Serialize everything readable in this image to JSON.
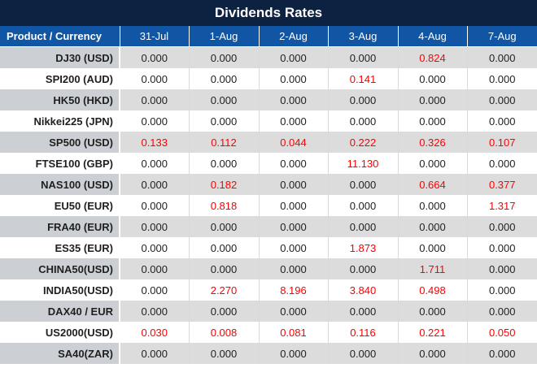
{
  "chart_data": {
    "type": "table",
    "title": "Dividends Rates",
    "product_column_label": "Product / Currency",
    "date_columns": [
      "31-Jul",
      "1-Aug",
      "2-Aug",
      "3-Aug",
      "4-Aug",
      "7-Aug"
    ],
    "rows": [
      {
        "product": "DJ30 (USD)",
        "values": [
          "0.000",
          "0.000",
          "0.000",
          "0.000",
          "0.824",
          "0.000"
        ],
        "red": [
          0,
          0,
          0,
          0,
          1,
          0
        ]
      },
      {
        "product": "SPI200 (AUD)",
        "values": [
          "0.000",
          "0.000",
          "0.000",
          "0.141",
          "0.000",
          "0.000"
        ],
        "red": [
          0,
          0,
          0,
          1,
          0,
          0
        ]
      },
      {
        "product": "HK50 (HKD)",
        "values": [
          "0.000",
          "0.000",
          "0.000",
          "0.000",
          "0.000",
          "0.000"
        ],
        "red": [
          0,
          0,
          0,
          0,
          0,
          0
        ]
      },
      {
        "product": "Nikkei225 (JPN)",
        "values": [
          "0.000",
          "0.000",
          "0.000",
          "0.000",
          "0.000",
          "0.000"
        ],
        "red": [
          0,
          0,
          0,
          0,
          0,
          0
        ]
      },
      {
        "product": "SP500 (USD)",
        "values": [
          "0.133",
          "0.112",
          "0.044",
          "0.222",
          "0.326",
          "0.107"
        ],
        "red": [
          1,
          1,
          1,
          1,
          1,
          1
        ]
      },
      {
        "product": "FTSE100 (GBP)",
        "values": [
          "0.000",
          "0.000",
          "0.000",
          "11.130",
          "0.000",
          "0.000"
        ],
        "red": [
          0,
          0,
          0,
          1,
          0,
          0
        ]
      },
      {
        "product": "NAS100 (USD)",
        "values": [
          "0.000",
          "0.182",
          "0.000",
          "0.000",
          "0.664",
          "0.377"
        ],
        "red": [
          0,
          1,
          0,
          0,
          1,
          1
        ]
      },
      {
        "product": "EU50 (EUR)",
        "values": [
          "0.000",
          "0.818",
          "0.000",
          "0.000",
          "0.000",
          "1.317"
        ],
        "red": [
          0,
          1,
          0,
          0,
          0,
          1
        ]
      },
      {
        "product": "FRA40 (EUR)",
        "values": [
          "0.000",
          "0.000",
          "0.000",
          "0.000",
          "0.000",
          "0.000"
        ],
        "red": [
          0,
          0,
          0,
          0,
          0,
          0
        ]
      },
      {
        "product": "ES35 (EUR)",
        "values": [
          "0.000",
          "0.000",
          "0.000",
          "1.873",
          "0.000",
          "0.000"
        ],
        "red": [
          0,
          0,
          0,
          1,
          0,
          0
        ]
      },
      {
        "product": "CHINA50(USD)",
        "values": [
          "0.000",
          "0.000",
          "0.000",
          "0.000",
          "1.711",
          "0.000"
        ],
        "red": [
          0,
          0,
          0,
          0,
          1,
          0
        ]
      },
      {
        "product": "INDIA50(USD)",
        "values": [
          "0.000",
          "2.270",
          "8.196",
          "3.840",
          "0.498",
          "0.000"
        ],
        "red": [
          0,
          1,
          1,
          1,
          1,
          0
        ]
      },
      {
        "product": "DAX40 / EUR",
        "values": [
          "0.000",
          "0.000",
          "0.000",
          "0.000",
          "0.000",
          "0.000"
        ],
        "red": [
          0,
          0,
          0,
          0,
          0,
          0
        ]
      },
      {
        "product": "US2000(USD)",
        "values": [
          "0.030",
          "0.008",
          "0.081",
          "0.116",
          "0.221",
          "0.050"
        ],
        "red": [
          1,
          1,
          1,
          1,
          1,
          1
        ]
      },
      {
        "product": "SA40(ZAR)",
        "values": [
          "0.000",
          "0.000",
          "0.000",
          "0.000",
          "0.000",
          "0.000"
        ],
        "red": [
          0,
          0,
          0,
          0,
          0,
          0
        ]
      }
    ],
    "colors": {
      "title_bg": "#0d2140",
      "header_bg": "#1155a5",
      "header_text": "#ffffff",
      "row_gray_values": "#dcdcdc",
      "row_gray_label": "#ccd0d5",
      "row_white": "#ffffff",
      "value_text": "#1f1f1f",
      "value_red": "#fe0000"
    },
    "layout": {
      "grid": "zebra-rows",
      "value_align": "center",
      "label_align": "right"
    }
  }
}
